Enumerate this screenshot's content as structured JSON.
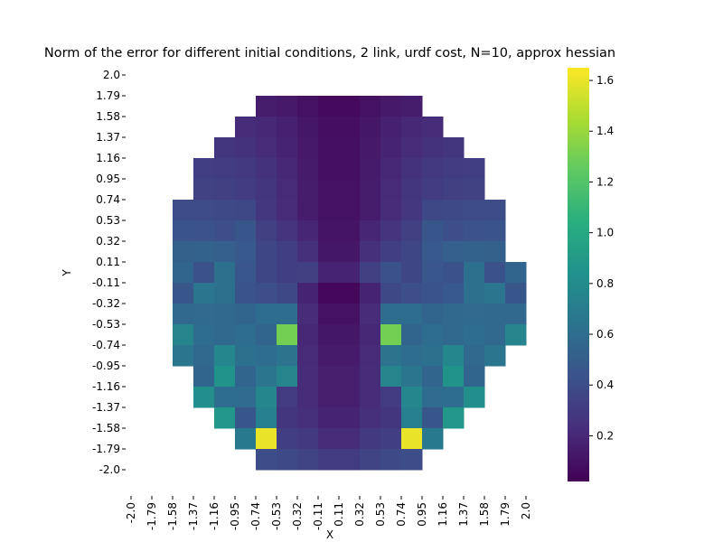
{
  "chart_data": {
    "type": "heatmap",
    "title": "Norm of the error for different initial conditions, 2 link, urdf cost, N=10, approx hessian",
    "xlabel": "X",
    "ylabel": "Y",
    "x_tick_labels": [
      "-2.0",
      "-1.79",
      "-1.58",
      "-1.37",
      "-1.16",
      "-0.95",
      "-0.74",
      "-0.53",
      "-0.32",
      "-0.11",
      "0.11",
      "0.32",
      "0.53",
      "0.74",
      "0.95",
      "1.16",
      "1.37",
      "1.58",
      "1.79",
      "2.0"
    ],
    "y_tick_labels": [
      "2.0",
      "1.79",
      "1.58",
      "1.37",
      "1.16",
      "0.95",
      "0.74",
      "0.53",
      "0.32",
      "0.11",
      "-0.11",
      "-0.32",
      "-0.53",
      "-0.74",
      "-0.95",
      "-1.16",
      "-1.37",
      "-1.58",
      "-1.79",
      "-2.0"
    ],
    "colormap": "viridis",
    "colorbar": {
      "min": 0.02,
      "max": 1.65,
      "ticks": [
        "0.2",
        "0.4",
        "0.6",
        "0.8",
        "1.0",
        "1.2",
        "1.4",
        "1.6"
      ]
    },
    "z": [
      [
        null,
        null,
        null,
        null,
        null,
        null,
        null,
        null,
        null,
        null,
        null,
        null,
        null,
        null,
        null,
        null,
        null,
        null,
        null,
        null
      ],
      [
        null,
        null,
        null,
        null,
        null,
        null,
        0.15,
        0.13,
        0.1,
        0.06,
        0.06,
        0.1,
        0.13,
        0.15,
        null,
        null,
        null,
        null,
        null,
        null
      ],
      [
        null,
        null,
        null,
        null,
        null,
        0.22,
        0.2,
        0.17,
        0.12,
        0.08,
        0.08,
        0.12,
        0.17,
        0.2,
        0.22,
        null,
        null,
        null,
        null,
        null
      ],
      [
        null,
        null,
        null,
        null,
        0.27,
        0.25,
        0.22,
        0.18,
        0.13,
        0.09,
        0.09,
        0.13,
        0.18,
        0.22,
        0.25,
        0.27,
        null,
        null,
        null,
        null
      ],
      [
        null,
        null,
        null,
        0.32,
        0.31,
        0.29,
        0.25,
        0.2,
        0.14,
        0.09,
        0.09,
        0.14,
        0.2,
        0.25,
        0.29,
        0.31,
        0.32,
        null,
        null,
        null
      ],
      [
        null,
        null,
        null,
        0.34,
        0.33,
        0.31,
        0.27,
        0.21,
        0.15,
        0.1,
        0.1,
        0.15,
        0.21,
        0.27,
        0.31,
        0.33,
        0.34,
        null,
        null,
        null
      ],
      [
        null,
        null,
        0.4,
        0.39,
        0.38,
        0.37,
        0.28,
        0.22,
        0.15,
        0.1,
        0.1,
        0.15,
        0.22,
        0.28,
        0.37,
        0.38,
        0.39,
        0.4,
        null,
        null
      ],
      [
        null,
        null,
        0.44,
        0.43,
        0.41,
        0.45,
        0.33,
        0.26,
        0.19,
        0.11,
        0.11,
        0.19,
        0.26,
        0.33,
        0.45,
        0.41,
        0.43,
        0.44,
        null,
        null
      ],
      [
        null,
        null,
        0.52,
        0.53,
        0.51,
        0.47,
        0.36,
        0.32,
        0.24,
        0.12,
        0.12,
        0.24,
        0.32,
        0.36,
        0.47,
        0.51,
        0.53,
        0.52,
        null,
        null
      ],
      [
        null,
        null,
        0.55,
        0.42,
        0.62,
        0.46,
        0.36,
        0.32,
        0.33,
        0.18,
        0.18,
        0.33,
        0.42,
        0.36,
        0.46,
        0.42,
        0.62,
        0.42,
        0.55,
        null
      ],
      [
        null,
        null,
        0.45,
        0.65,
        0.62,
        0.44,
        0.41,
        0.37,
        0.18,
        0.05,
        0.05,
        0.18,
        0.37,
        0.41,
        0.44,
        0.47,
        0.62,
        0.65,
        0.45,
        null
      ],
      [
        null,
        null,
        0.57,
        0.58,
        0.57,
        0.55,
        0.6,
        0.6,
        0.22,
        0.1,
        0.1,
        0.22,
        0.6,
        0.6,
        0.55,
        0.57,
        0.58,
        0.57,
        0.57,
        null
      ],
      [
        null,
        null,
        0.75,
        0.6,
        0.57,
        0.6,
        0.55,
        1.3,
        0.2,
        0.12,
        0.12,
        0.2,
        1.3,
        0.55,
        0.6,
        0.57,
        0.6,
        0.57,
        0.75,
        null
      ],
      [
        null,
        null,
        0.65,
        0.57,
        0.77,
        0.62,
        0.6,
        0.64,
        0.21,
        0.14,
        0.14,
        0.21,
        0.64,
        0.6,
        0.62,
        0.77,
        0.57,
        0.65,
        null,
        null
      ],
      [
        null,
        null,
        null,
        0.55,
        0.85,
        0.55,
        0.65,
        0.75,
        0.22,
        0.16,
        0.16,
        0.22,
        0.75,
        0.65,
        0.55,
        0.85,
        0.55,
        null,
        null,
        null
      ],
      [
        null,
        null,
        null,
        0.82,
        0.6,
        0.59,
        0.76,
        0.3,
        0.22,
        0.16,
        0.16,
        0.22,
        0.3,
        0.76,
        0.59,
        0.6,
        0.82,
        null,
        null,
        null
      ],
      [
        null,
        null,
        null,
        null,
        0.88,
        0.45,
        0.72,
        0.27,
        0.24,
        0.18,
        0.18,
        0.24,
        0.27,
        0.72,
        0.45,
        0.88,
        null,
        null,
        null,
        null
      ],
      [
        null,
        null,
        null,
        null,
        null,
        0.68,
        1.6,
        0.32,
        0.29,
        0.22,
        0.22,
        0.29,
        0.32,
        1.6,
        0.68,
        null,
        null,
        null,
        null,
        null
      ],
      [
        null,
        null,
        null,
        null,
        null,
        null,
        0.4,
        0.38,
        0.35,
        0.3,
        0.3,
        0.35,
        0.38,
        0.4,
        null,
        null,
        null,
        null,
        null,
        null
      ],
      [
        null,
        null,
        null,
        null,
        null,
        null,
        null,
        null,
        null,
        null,
        null,
        null,
        null,
        null,
        null,
        null,
        null,
        null,
        null,
        null
      ]
    ]
  }
}
